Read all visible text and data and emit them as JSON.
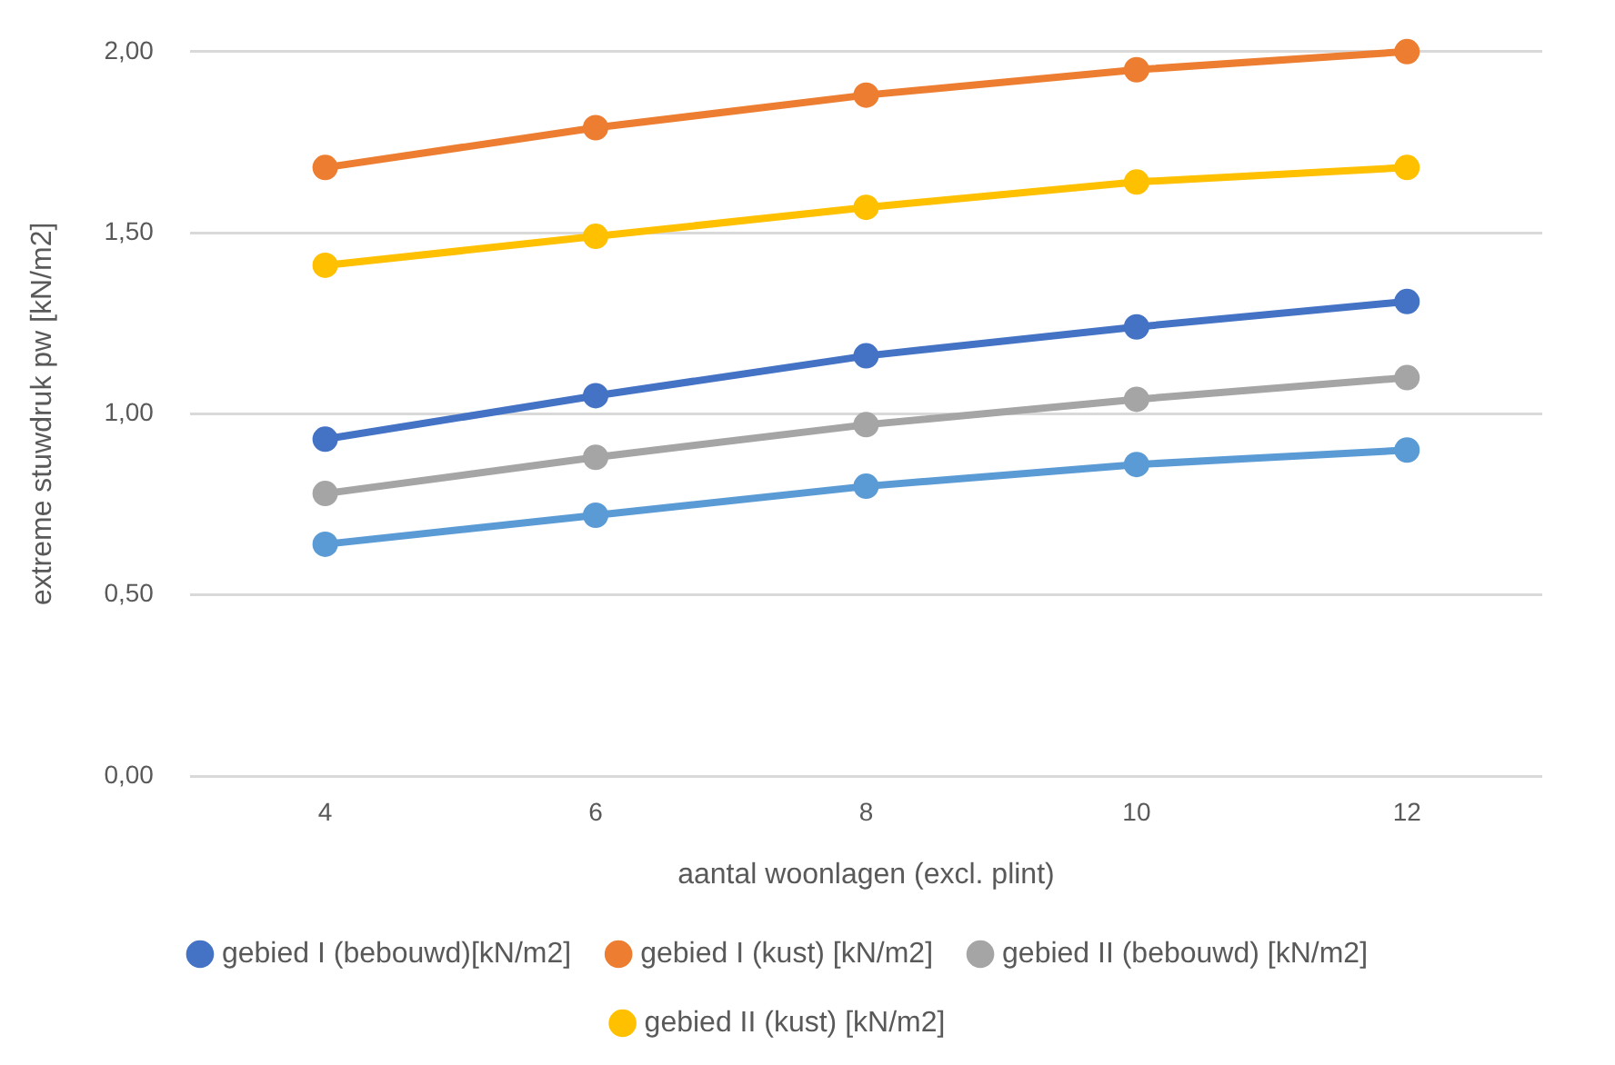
{
  "chart_data": {
    "type": "line",
    "xlabel": "aantal woonlagen (excl. plint)",
    "ylabel": "extreme stuwdruk pw [kN/m2]",
    "categories": [
      "4",
      "6",
      "8",
      "10",
      "12"
    ],
    "series": [
      {
        "name": "gebied I (bebouwd)[kN/m2]",
        "color": "#4472c4",
        "values": [
          0.93,
          1.05,
          1.16,
          1.24,
          1.31
        ]
      },
      {
        "name": "gebied I (kust) [kN/m2]",
        "color": "#ed7d31",
        "values": [
          1.68,
          1.79,
          1.88,
          1.95,
          2.0
        ]
      },
      {
        "name": "gebied II (bebouwd) [kN/m2]",
        "color": "#a5a5a5",
        "values": [
          0.78,
          0.88,
          0.97,
          1.04,
          1.1
        ]
      },
      {
        "name": "gebied II (kust) [kN/m2]",
        "color": "#ffc000",
        "values": [
          1.41,
          1.49,
          1.57,
          1.64,
          1.68
        ]
      },
      {
        "color": "#5b9bd5",
        "values": [
          0.64,
          0.72,
          0.8,
          0.86,
          0.9
        ]
      }
    ],
    "ylim": [
      0,
      2
    ],
    "yticks": [
      {
        "value": 0,
        "label": "0,00"
      },
      {
        "value": 0.5,
        "label": "0,50"
      },
      {
        "value": 1,
        "label": "1,00"
      },
      {
        "value": 1.5,
        "label": "1,50"
      },
      {
        "value": 2,
        "label": "2,00"
      }
    ],
    "grid": "y",
    "legend": "bottom",
    "marker": "circle",
    "line_style": "solid"
  }
}
